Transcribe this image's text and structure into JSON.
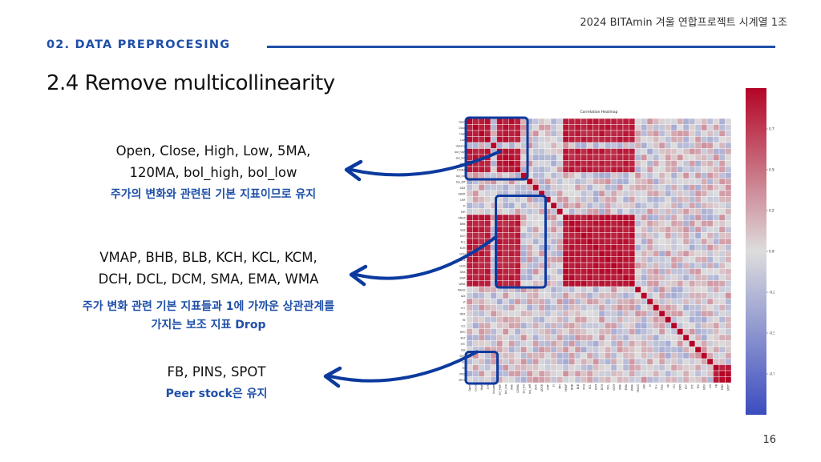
{
  "header": {
    "project": "2024 BITAmin 겨울 연합프로젝트 시계열 1조"
  },
  "section": {
    "label": "02. DATA PREPROCESING"
  },
  "slide": {
    "title": "2.4 Remove multicollinearity",
    "page": "16"
  },
  "blocks": [
    {
      "line1": "Open, Close, High, Low, 5MA,",
      "line2": "120MA, bol_high, bol_low",
      "note1": "주가의 변화와 관련된 기본 지표이므로 유지",
      "note2": ""
    },
    {
      "line1": "VMAP, BHB, BLB, KCH, KCL, KCM,",
      "line2": "DCH, DCL, DCM, SMA, EMA, WMA",
      "note1": "주가 변화 관련 기본 지표들과 1에 가까운 상관관계를",
      "note2": "가지는 보조 지표 Drop"
    },
    {
      "line1": "FB, PINS, SPOT",
      "line2": "",
      "note1": "Peer stock은 유지",
      "note2": ""
    }
  ],
  "chart_data": {
    "type": "heatmap",
    "title": "Correlation Heatmap",
    "variables": [
      "Open",
      "Close",
      "High",
      "Low",
      "Volume",
      "bol_high",
      "bol_low",
      "5MA",
      "120MA",
      "bol_ind",
      "bol_diff",
      "ADX",
      "ADXR",
      "CMF",
      "FI",
      "MFI",
      "VMAP",
      "BHB",
      "BLB",
      "KCH",
      "KCL",
      "KCM",
      "DCH",
      "DCL",
      "DCM",
      "SMA",
      "EMA",
      "WMA",
      "MACD",
      "ADI",
      "VI",
      "VI+",
      "TRIX",
      "MI",
      "CCI",
      "DPO",
      "KST",
      "STC",
      "RSI",
      "SRSI",
      "UO",
      "FB",
      "PINS",
      "SPOT"
    ],
    "correlated_groups": [
      [
        0,
        1,
        2,
        3,
        5,
        6,
        7,
        8
      ],
      [
        16,
        17,
        18,
        19,
        20,
        21,
        22,
        23,
        24,
        25,
        26,
        27
      ],
      [
        41,
        42,
        43
      ]
    ],
    "colorbar": {
      "ticks": [
        "0.75",
        "0.50",
        "0.25",
        "0.00",
        "-0.25",
        "-0.50",
        "-0.75"
      ],
      "range": [
        -1,
        1
      ],
      "colors": [
        "#3b4cc0",
        "#dddddd",
        "#b40426"
      ]
    }
  }
}
